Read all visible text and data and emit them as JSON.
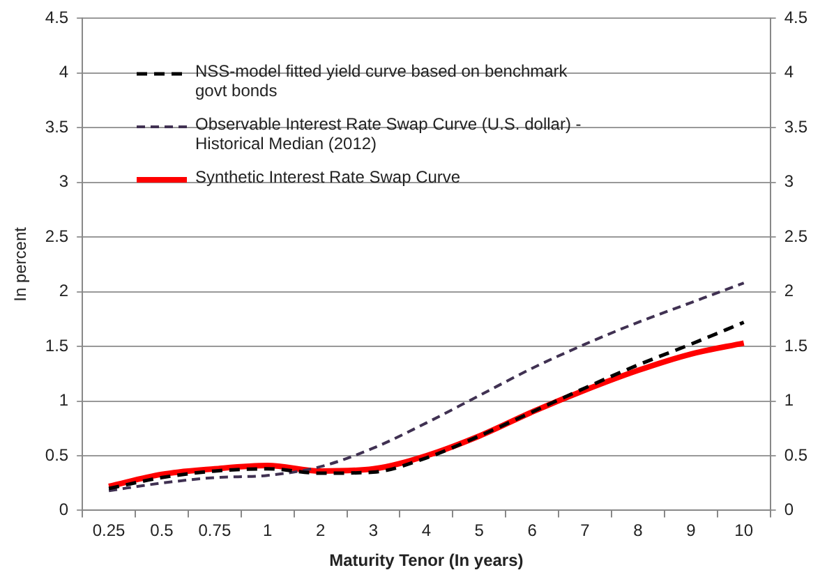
{
  "chart_data": {
    "type": "line",
    "xlabel": "Maturity Tenor (In years)",
    "ylabel": "In percent",
    "categories": [
      "0.25",
      "0.5",
      "0.75",
      "1",
      "2",
      "3",
      "4",
      "5",
      "6",
      "7",
      "8",
      "9",
      "10"
    ],
    "series": [
      {
        "name": "NSS-model fitted yield curve based on benchmark govt bonds",
        "color": "#000000",
        "line_style": "dashed",
        "values": [
          0.2,
          0.3,
          0.36,
          0.38,
          0.34,
          0.35,
          0.48,
          0.68,
          0.9,
          1.12,
          1.33,
          1.52,
          1.72
        ]
      },
      {
        "name": "Observable Interest Rate Swap Curve (U.S. dollar) - Historical Median (2012)",
        "color": "#403152",
        "line_style": "dashed",
        "values": [
          0.18,
          0.25,
          0.3,
          0.32,
          0.4,
          0.57,
          0.8,
          1.05,
          1.3,
          1.52,
          1.72,
          1.9,
          2.08
        ]
      },
      {
        "name": "Synthetic Interest Rate Swap Curve",
        "color": "#ff0000",
        "line_style": "solid",
        "values": [
          0.22,
          0.33,
          0.38,
          0.41,
          0.36,
          0.38,
          0.5,
          0.68,
          0.9,
          1.1,
          1.28,
          1.43,
          1.53
        ]
      }
    ],
    "ylim": [
      0,
      4.5
    ],
    "yticks": [
      0,
      0.5,
      1,
      1.5,
      2,
      2.5,
      3,
      3.5,
      4,
      4.5
    ],
    "y2lim": [
      0,
      4.5
    ],
    "y2ticks": [
      0,
      0.5,
      1,
      1.5,
      2,
      2.5,
      3,
      3.5,
      4,
      4.5
    ],
    "grid": "y",
    "legend": "top left",
    "marker": "none"
  }
}
